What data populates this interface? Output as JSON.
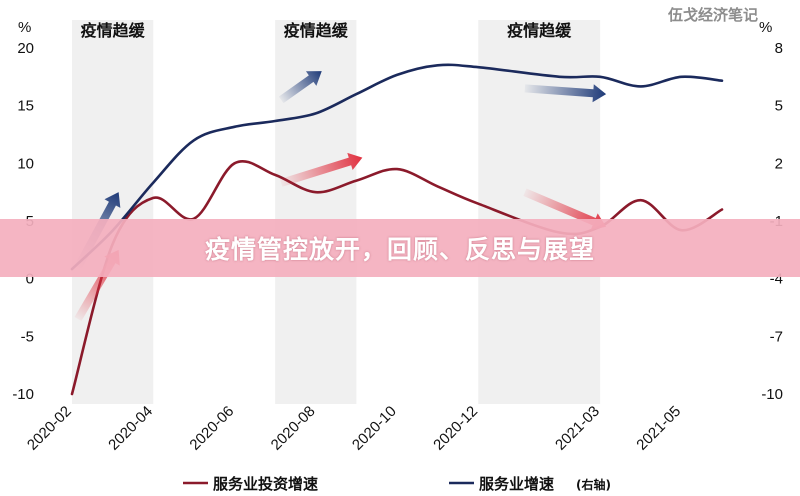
{
  "watermark": "伍戈经济笔记",
  "banner": {
    "title": "疫情管控放开，回顾、反思与展望"
  },
  "chart_data": {
    "type": "line",
    "x_labels": [
      "2020-02",
      "2020-04",
      "2020-06",
      "2020-08",
      "2020-10",
      "2020-12",
      "2021-03",
      "2021-05"
    ],
    "left_axis": {
      "unit": "%",
      "ylim": [
        -10,
        20
      ],
      "ticks": [
        20,
        15,
        10,
        5,
        0,
        -5,
        -10
      ]
    },
    "right_axis": {
      "unit": "%",
      "ylim": [
        -10,
        8
      ],
      "ticks": [
        8,
        5,
        2,
        -1,
        -4,
        -7,
        -10
      ]
    },
    "shaded_periods": [
      {
        "label": "疫情趋缓",
        "from": "2020-02",
        "to": "2020-04"
      },
      {
        "label": "疫情趋缓",
        "from": "2020-07",
        "to": "2020-09"
      },
      {
        "label": "疫情趋缓",
        "from": "2020-12",
        "to": "2021-03"
      }
    ],
    "series": [
      {
        "name": "服务业投资增速",
        "axis": "left",
        "color": "#8b1a2b",
        "points": [
          [
            "2020-02",
            -10
          ],
          [
            "2020-03",
            3
          ],
          [
            "2020-04",
            7
          ],
          [
            "2020-05",
            5.2
          ],
          [
            "2020-06",
            10
          ],
          [
            "2020-07",
            9
          ],
          [
            "2020-08",
            7.5
          ],
          [
            "2020-09",
            8.5
          ],
          [
            "2020-10",
            9.5
          ],
          [
            "2020-11",
            8
          ],
          [
            "2020-12",
            6.5
          ],
          [
            "2021-02",
            4
          ],
          [
            "2021-03",
            4.5
          ],
          [
            "2021-04",
            6.8
          ],
          [
            "2021-05",
            4.2
          ],
          [
            "2021-06",
            6
          ]
        ]
      },
      {
        "name": "服务业增速",
        "name_suffix": "(右轴)",
        "axis": "right",
        "color": "#1b2a5c",
        "points": [
          [
            "2020-02",
            -3.5
          ],
          [
            "2020-03",
            -1.5
          ],
          [
            "2020-04",
            1
          ],
          [
            "2020-05",
            3.2
          ],
          [
            "2020-06",
            3.9
          ],
          [
            "2020-07",
            4.2
          ],
          [
            "2020-08",
            4.6
          ],
          [
            "2020-09",
            5.6
          ],
          [
            "2020-10",
            6.6
          ],
          [
            "2020-11",
            7.1
          ],
          [
            "2020-12",
            7
          ],
          [
            "2021-02",
            6.5
          ],
          [
            "2021-03",
            6.5
          ],
          [
            "2021-04",
            6
          ],
          [
            "2021-05",
            6.5
          ],
          [
            "2021-06",
            6.3
          ]
        ]
      }
    ],
    "arrows": [
      {
        "color": "navy",
        "from": [
          "2020-02",
          1
        ],
        "to": [
          "2020-03",
          7.5
        ]
      },
      {
        "color": "red",
        "from": [
          "2020-02",
          -3.5
        ],
        "to": [
          "2020-03",
          2.5
        ]
      },
      {
        "color": "navy",
        "from": [
          "2020-07",
          15.5
        ],
        "to": [
          "2020-08",
          18
        ]
      },
      {
        "color": "red",
        "from": [
          "2020-07",
          8.3
        ],
        "to": [
          "2020-09",
          10.5
        ]
      },
      {
        "color": "navy",
        "from": [
          "2021-01",
          16.5
        ],
        "to": [
          "2021-03",
          16
        ]
      },
      {
        "color": "red",
        "from": [
          "2021-01",
          7.5
        ],
        "to": [
          "2021-03",
          4.5
        ]
      }
    ],
    "legend": {
      "position": "bottom"
    }
  }
}
